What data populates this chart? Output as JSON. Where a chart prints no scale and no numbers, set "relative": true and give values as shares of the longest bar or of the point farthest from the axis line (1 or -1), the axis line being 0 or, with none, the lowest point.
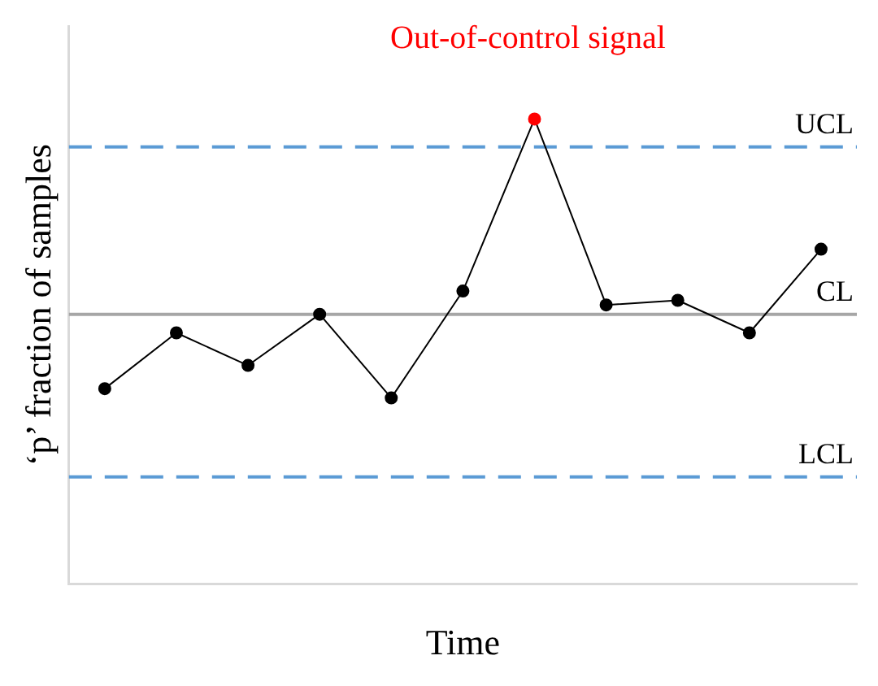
{
  "chart_data": {
    "type": "line",
    "relative": true,
    "xlabel": "Time",
    "ylabel": "‘p’ fraction of samples",
    "categories": [
      null,
      null,
      null,
      null,
      null,
      null,
      null,
      null,
      null,
      null,
      null
    ],
    "series": [
      {
        "color": "#000000",
        "colors": [
          "#000000",
          "#000000",
          "#000000",
          "#000000",
          "#000000",
          "#000000",
          "#ff0000",
          "#000000",
          "#000000",
          "#000000",
          "#000000"
        ],
        "values": [
          0.42,
          0.54,
          0.47,
          0.58,
          0.4,
          0.63,
          1,
          0.6,
          0.61,
          0.54,
          0.72
        ]
      }
    ],
    "marker": "circle",
    "grid": false,
    "legend": false,
    "annotations": [
      "Out-of-control signal"
    ],
    "ref_lines": [
      {
        "axis": "y",
        "value": 0.94,
        "label": "UCL",
        "color": "#5b9bd5",
        "line_style": "dashed"
      },
      {
        "axis": "y",
        "value": 0.58,
        "label": "CL",
        "color": "#a6a6a6",
        "line_style": "solid"
      },
      {
        "axis": "y",
        "value": 0.23,
        "label": "LCL",
        "color": "#5b9bd5",
        "line_style": "dashed"
      }
    ]
  }
}
